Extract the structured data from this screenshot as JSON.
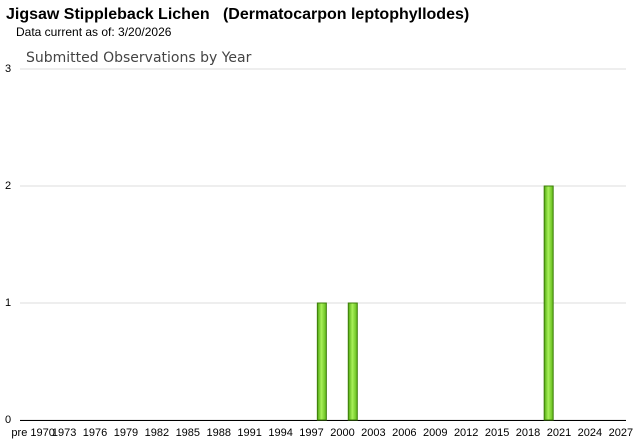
{
  "chart_data": {
    "type": "bar",
    "title": "Jigsaw Stippleback Lichen   (Dermatocarpon leptophyllodes)",
    "subtitle": "Data current as of: 3/20/2026",
    "chart_title": "Submitted Observations by Year",
    "categories": [
      "pre 1970",
      null,
      null,
      "1973",
      null,
      null,
      "1976",
      null,
      null,
      "1979",
      null,
      null,
      "1982",
      null,
      null,
      "1985",
      null,
      null,
      "1988",
      null,
      null,
      "1991",
      null,
      null,
      "1994",
      null,
      null,
      "1997",
      null,
      null,
      "2000",
      null,
      null,
      "2003",
      null,
      null,
      "2006",
      null,
      null,
      "2009",
      null,
      null,
      "2012",
      null,
      null,
      "2015",
      null,
      null,
      "2018",
      null,
      null,
      "2021",
      null,
      null,
      "2024",
      null,
      null,
      "2027"
    ],
    "values": [
      0,
      0,
      0,
      0,
      0,
      0,
      0,
      0,
      0,
      0,
      0,
      0,
      0,
      0,
      0,
      0,
      0,
      0,
      0,
      0,
      0,
      0,
      0,
      0,
      0,
      0,
      0,
      0,
      1,
      0,
      0,
      1,
      0,
      0,
      0,
      0,
      0,
      0,
      0,
      0,
      0,
      0,
      0,
      0,
      0,
      0,
      0,
      0,
      0,
      0,
      2,
      0,
      0,
      0,
      0,
      0,
      0,
      0
    ],
    "color": "#7fd62a",
    "ylim": [
      0,
      3
    ],
    "yticks": [
      0,
      1,
      2,
      3
    ],
    "grid": true
  }
}
